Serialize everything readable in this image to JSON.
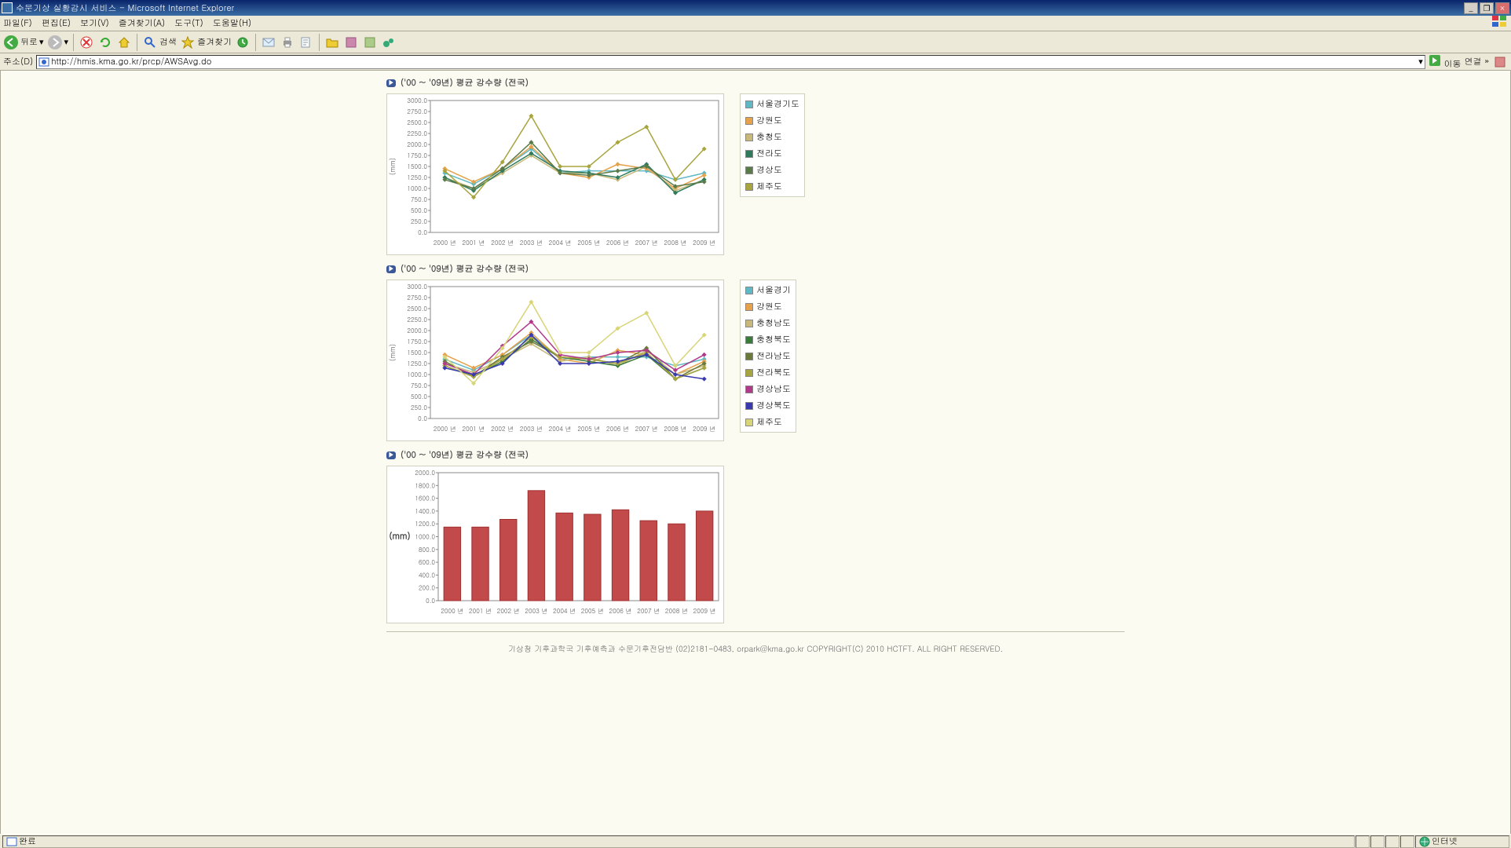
{
  "window": {
    "title": "수문기상 실황감시 서비스 - Microsoft Internet Explorer"
  },
  "menu": [
    "파일(F)",
    "편집(E)",
    "보기(V)",
    "즐겨찾기(A)",
    "도구(T)",
    "도움말(H)"
  ],
  "toolbar": {
    "back": "뒤로",
    "search": "검색",
    "fav": "즐겨찾기"
  },
  "address": {
    "label": "주소(D)",
    "url": "http://hmis.kma.go.kr/prcp/AWSAvg.do",
    "go": "이동",
    "link": "연결"
  },
  "chart_title": "('00 ~ '09년) 평균 강수량 (전국)",
  "chart1": {
    "type": "line",
    "ylabel": "(mm)",
    "ylim": [
      0,
      3000
    ],
    "ytick_step": 250,
    "categories": [
      "2000 년",
      "2001 년",
      "2002 년",
      "2003 년",
      "2004 년",
      "2005 년",
      "2006 년",
      "2007 년",
      "2008 년",
      "2009 년"
    ],
    "series": [
      {
        "name": "서울경기도",
        "color": "#5fb8c4",
        "values": [
          1350,
          1100,
          1450,
          1900,
          1350,
          1400,
          1400,
          1400,
          1200,
          1350
        ]
      },
      {
        "name": "강원도",
        "color": "#e6a14a",
        "values": [
          1450,
          1150,
          1450,
          1950,
          1350,
          1250,
          1550,
          1450,
          1000,
          1300
        ]
      },
      {
        "name": "충청도",
        "color": "#c8b97a",
        "values": [
          1250,
          1000,
          1350,
          1750,
          1350,
          1350,
          1200,
          1500,
          950,
          1200
        ]
      },
      {
        "name": "전라도",
        "color": "#2f7a5d",
        "values": [
          1250,
          950,
          1400,
          1800,
          1400,
          1350,
          1250,
          1550,
          900,
          1200
        ]
      },
      {
        "name": "경상도",
        "color": "#5a7a4a",
        "values": [
          1200,
          1000,
          1450,
          2050,
          1350,
          1300,
          1400,
          1500,
          1050,
          1150
        ]
      },
      {
        "name": "제주도",
        "color": "#a8a43e",
        "values": [
          1400,
          800,
          1600,
          2650,
          1500,
          1500,
          2050,
          2400,
          1200,
          1900
        ]
      }
    ],
    "legend_border": "#c8b97a",
    "legend_colors": [
      "#5fb8c4",
      "#e6a14a",
      "#c8b97a",
      "#2f7a5d",
      "#5a7a4a",
      "#a8a43e"
    ],
    "legend_labels": [
      "서울경기도",
      "강원도",
      "충청도",
      "전라도",
      "경상도",
      "제주도"
    ]
  },
  "chart2": {
    "type": "line",
    "ylabel": "(mm)",
    "ylim": [
      0,
      3000
    ],
    "ytick_step": 250,
    "categories": [
      "2000 년",
      "2001 년",
      "2002 년",
      "2003 년",
      "2004 년",
      "2005 년",
      "2006 년",
      "2007 년",
      "2008 년",
      "2009 년"
    ],
    "series": [
      {
        "name": "서울경기",
        "color": "#5fb8c4",
        "values": [
          1350,
          1100,
          1450,
          1900,
          1350,
          1400,
          1400,
          1400,
          1200,
          1350
        ]
      },
      {
        "name": "강원도",
        "color": "#e6a14a",
        "values": [
          1450,
          1150,
          1450,
          1950,
          1350,
          1250,
          1550,
          1450,
          1000,
          1300
        ]
      },
      {
        "name": "충청남도",
        "color": "#c8b97a",
        "values": [
          1250,
          1050,
          1350,
          1700,
          1300,
          1400,
          1200,
          1550,
          1000,
          1200
        ]
      },
      {
        "name": "충청북도",
        "color": "#3a7a3a",
        "values": [
          1200,
          950,
          1300,
          1800,
          1400,
          1300,
          1200,
          1450,
          900,
          1150
        ]
      },
      {
        "name": "전라남도",
        "color": "#6a7a3a",
        "values": [
          1300,
          950,
          1400,
          1750,
          1400,
          1350,
          1250,
          1600,
          900,
          1250
        ]
      },
      {
        "name": "전라북도",
        "color": "#a8a43e",
        "values": [
          1200,
          950,
          1350,
          1850,
          1400,
          1350,
          1250,
          1500,
          900,
          1150
        ]
      },
      {
        "name": "경상남도",
        "color": "#b03a8a",
        "values": [
          1250,
          1000,
          1650,
          2200,
          1450,
          1350,
          1500,
          1550,
          1100,
          1450
        ]
      },
      {
        "name": "경상북도",
        "color": "#3a3ab0",
        "values": [
          1150,
          1000,
          1250,
          1900,
          1250,
          1250,
          1300,
          1450,
          1000,
          900
        ]
      },
      {
        "name": "제주도",
        "color": "#d8d478",
        "values": [
          1400,
          800,
          1600,
          2650,
          1500,
          1500,
          2050,
          2400,
          1200,
          1900
        ]
      }
    ],
    "legend_colors": [
      "#5fb8c4",
      "#e6a14a",
      "#c8b97a",
      "#3a7a3a",
      "#6a7a3a",
      "#a8a43e",
      "#b03a8a",
      "#3a3ab0",
      "#d8d478"
    ],
    "legend_labels": [
      "서울경기",
      "강원도",
      "충청남도",
      "충청북도",
      "전라남도",
      "전라북도",
      "경상남도",
      "경상북도",
      "제주도"
    ]
  },
  "chart3": {
    "type": "bar",
    "ylabel": "(mm)",
    "ylim": [
      0,
      2000
    ],
    "ytick_step": 200,
    "categories": [
      "2000 년",
      "2001 년",
      "2002 년",
      "2003 년",
      "2004 년",
      "2005 년",
      "2006 년",
      "2007 년",
      "2008 년",
      "2009 년"
    ],
    "values": [
      1150,
      1150,
      1270,
      1720,
      1370,
      1350,
      1420,
      1250,
      1200,
      1400
    ],
    "bar_color": "#c24a4a",
    "bar_border": "#a03030"
  },
  "footer": {
    "text": "기상청 기후과학국 기후예측과 수문기후전담반   (02)2181-0483, orpark@kma.go.kr   COPYRIGHT(C) 2010 HCTFT. ALL RIGHT RESERVED."
  },
  "status": {
    "done": "완료",
    "net": "인터넷"
  }
}
